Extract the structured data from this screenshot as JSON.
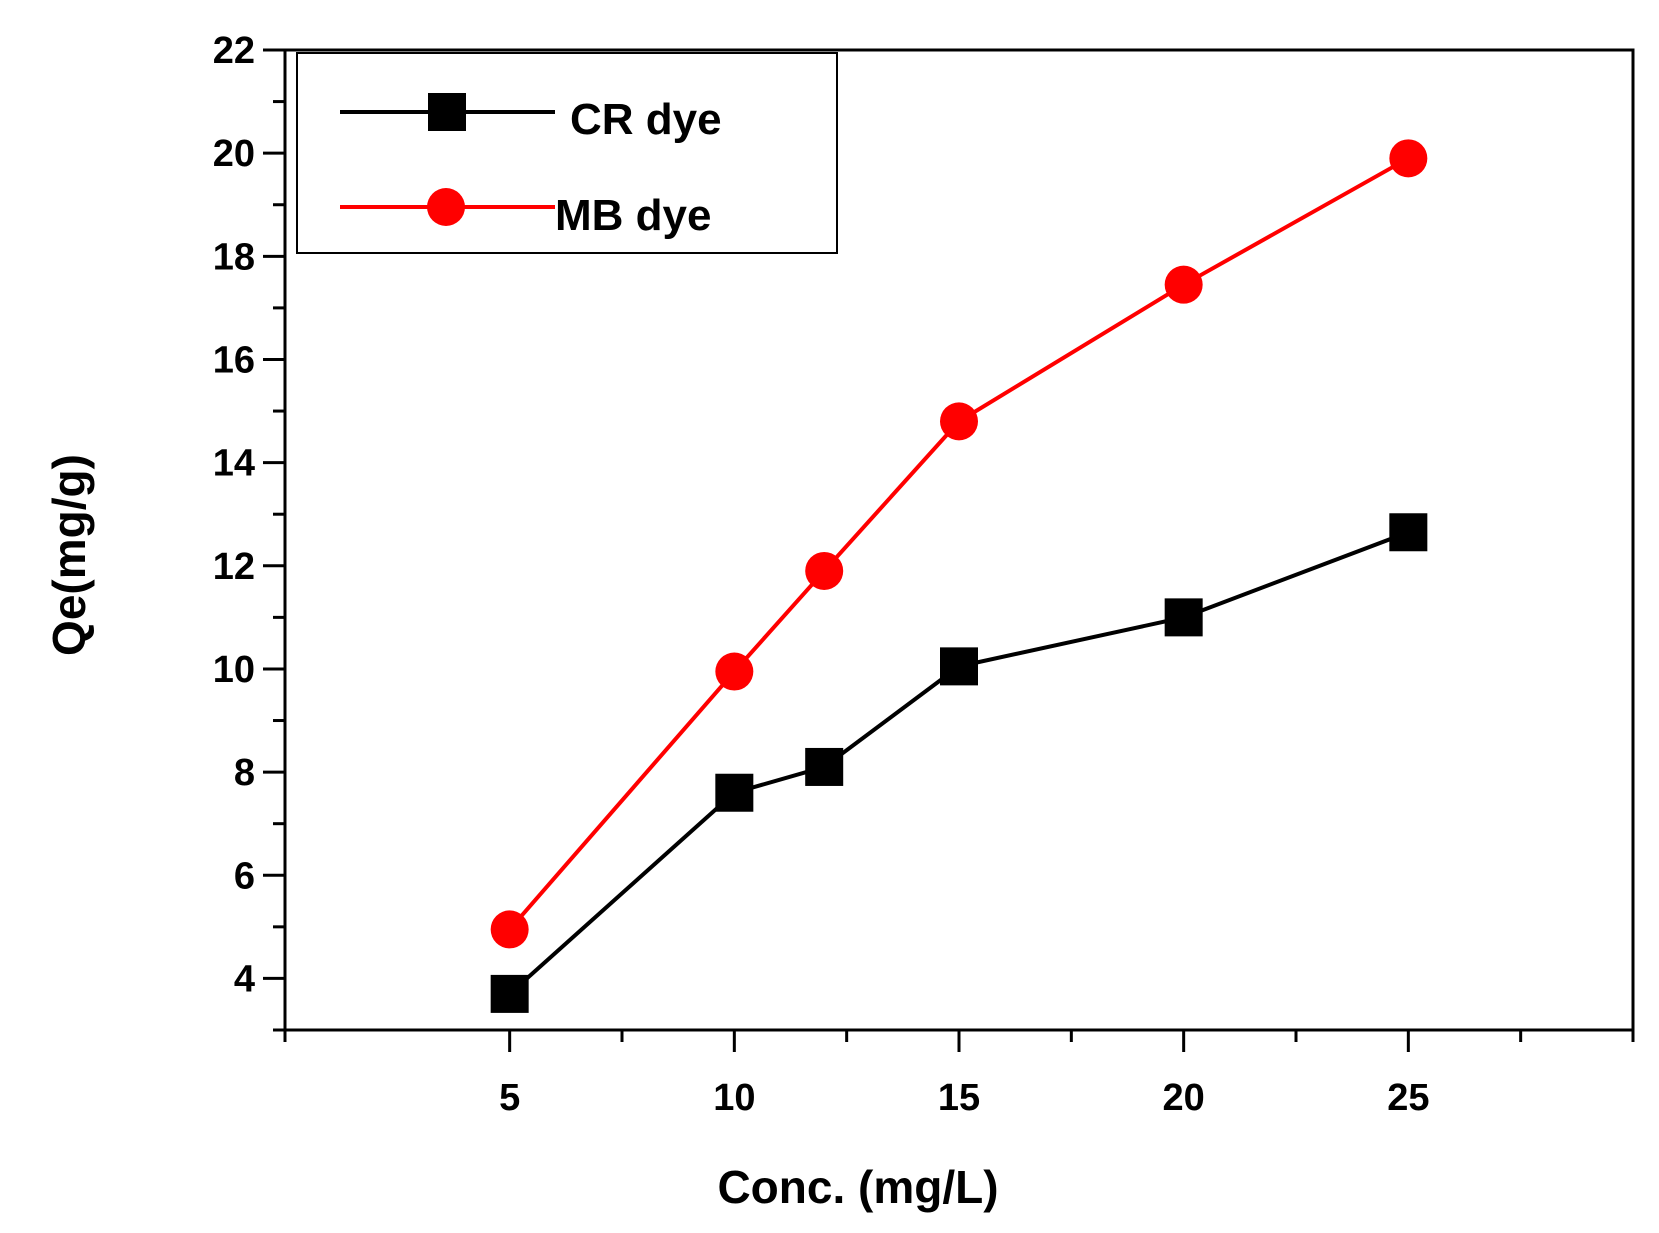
{
  "chart_data": {
    "type": "line",
    "title": "",
    "xlabel": "Conc. (mg/L)",
    "ylabel": "Qe(mg/g)",
    "xlim": [
      0,
      30
    ],
    "ylim": [
      3,
      22
    ],
    "x_ticks": [
      5,
      10,
      15,
      20,
      25
    ],
    "x_minor_ticks": [
      0,
      7.5,
      12.5,
      17.5,
      22.5,
      27.5,
      30
    ],
    "y_ticks": [
      4,
      6,
      8,
      10,
      12,
      14,
      16,
      18,
      20,
      22
    ],
    "y_minor_ticks": [
      3,
      5,
      7,
      9,
      11,
      13,
      15,
      17,
      19,
      21
    ],
    "x_tick_labels": [
      "5",
      "10",
      "15",
      "20",
      "25"
    ],
    "y_tick_labels": [
      "4",
      "6",
      "8",
      "10",
      "12",
      "14",
      "16",
      "18",
      "20",
      "22"
    ],
    "x": [
      5,
      10,
      12,
      15,
      20,
      25
    ],
    "grid": false,
    "legend_position": "top-left",
    "series": [
      {
        "name": "CR dye",
        "color": "#000000",
        "marker": "square",
        "values": [
          3.7,
          7.6,
          8.1,
          10.05,
          11.0,
          12.65
        ]
      },
      {
        "name": "MB dye",
        "color": "#ff0000",
        "marker": "circle",
        "values": [
          4.95,
          9.95,
          11.9,
          14.8,
          17.45,
          19.9
        ]
      }
    ]
  }
}
